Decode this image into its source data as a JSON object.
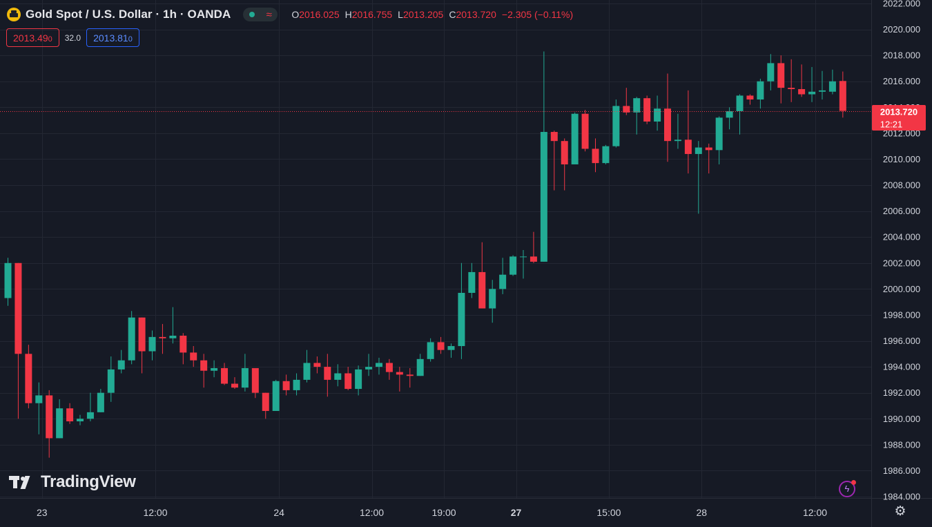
{
  "header": {
    "title": "Gold Spot / U.S. Dollar · 1h · OANDA",
    "status_icon": "wave-icon",
    "ohlc": {
      "o_label": "O",
      "o": "2016.025",
      "h_label": "H",
      "h": "2016.755",
      "l_label": "L",
      "l": "2013.205",
      "c_label": "C",
      "c": "2013.720",
      "change": "−2.305 (−0.11%)"
    },
    "sell_price": "2013.49",
    "sell_price_small": "0",
    "spread": "32.0",
    "buy_price": "2013.81",
    "buy_price_small": "0"
  },
  "branding": {
    "logo_text": "TradingView"
  },
  "colors": {
    "background": "#161a25",
    "up": "#22ab94",
    "down": "#f23645",
    "grid": "#232733",
    "axis_text": "#d1d4dc"
  },
  "chart_data": {
    "type": "candlestick",
    "title": "Gold Spot / U.S. Dollar · 1h · OANDA",
    "xlabel": "",
    "ylabel": "",
    "ylim": [
      1984,
      2022
    ],
    "y_ticks": [
      "2022.000",
      "2020.000",
      "2018.000",
      "2016.000",
      "2014.000",
      "2012.000",
      "2010.000",
      "2008.000",
      "2006.000",
      "2004.000",
      "2002.000",
      "2000.000",
      "1998.000",
      "1996.000",
      "1994.000",
      "1992.000",
      "1990.000",
      "1988.000",
      "1986.000",
      "1984.000"
    ],
    "x_ticks": [
      {
        "label": "23",
        "index": 3.3,
        "bold": false
      },
      {
        "label": "12:00",
        "index": 14.3,
        "bold": false
      },
      {
        "label": "24",
        "index": 26.3,
        "bold": false
      },
      {
        "label": "12:00",
        "index": 35.3,
        "bold": false
      },
      {
        "label": "19:00",
        "index": 42.3,
        "bold": false
      },
      {
        "label": "27",
        "index": 49.3,
        "bold": true
      },
      {
        "label": "15:00",
        "index": 58.3,
        "bold": false
      },
      {
        "label": "28",
        "index": 67.3,
        "bold": false
      },
      {
        "label": "12:00",
        "index": 78.3,
        "bold": false
      }
    ],
    "grid": true,
    "last_price": {
      "value": 2013.72,
      "label": "2013.720",
      "countdown": "12:21"
    },
    "candles": [
      {
        "o": 1999.3,
        "h": 2002.4,
        "l": 1998.7,
        "c": 2002.0
      },
      {
        "o": 2002.0,
        "h": 2002.0,
        "l": 1990.0,
        "c": 1995.0
      },
      {
        "o": 1995.0,
        "h": 1995.7,
        "l": 1990.8,
        "c": 1991.2
      },
      {
        "o": 1991.2,
        "h": 1992.8,
        "l": 1988.8,
        "c": 1991.8
      },
      {
        "o": 1991.8,
        "h": 1992.2,
        "l": 1987.0,
        "c": 1988.5
      },
      {
        "o": 1988.5,
        "h": 1991.5,
        "l": 1988.5,
        "c": 1990.8
      },
      {
        "o": 1990.8,
        "h": 1991.2,
        "l": 1989.6,
        "c": 1989.8
      },
      {
        "o": 1989.8,
        "h": 1990.3,
        "l": 1989.5,
        "c": 1990.0
      },
      {
        "o": 1990.0,
        "h": 1992.0,
        "l": 1989.8,
        "c": 1990.5
      },
      {
        "o": 1990.5,
        "h": 1992.3,
        "l": 1990.5,
        "c": 1992.0
      },
      {
        "o": 1992.0,
        "h": 1994.8,
        "l": 1991.3,
        "c": 1993.8
      },
      {
        "o": 1993.8,
        "h": 1995.3,
        "l": 1993.5,
        "c": 1994.5
      },
      {
        "o": 1994.5,
        "h": 1998.3,
        "l": 1994.2,
        "c": 1997.8
      },
      {
        "o": 1997.8,
        "h": 1997.8,
        "l": 1993.5,
        "c": 1995.2
      },
      {
        "o": 1995.2,
        "h": 1996.8,
        "l": 1994.5,
        "c": 1996.3
      },
      {
        "o": 1996.3,
        "h": 1997.3,
        "l": 1995.0,
        "c": 1996.2
      },
      {
        "o": 1996.2,
        "h": 1998.6,
        "l": 1995.8,
        "c": 1996.4
      },
      {
        "o": 1996.4,
        "h": 1996.6,
        "l": 1994.2,
        "c": 1995.1
      },
      {
        "o": 1995.1,
        "h": 1995.6,
        "l": 1994.0,
        "c": 1994.5
      },
      {
        "o": 1994.5,
        "h": 1995.0,
        "l": 1992.4,
        "c": 1993.7
      },
      {
        "o": 1993.7,
        "h": 1994.5,
        "l": 1993.2,
        "c": 1993.9
      },
      {
        "o": 1993.9,
        "h": 1994.3,
        "l": 1992.6,
        "c": 1992.7
      },
      {
        "o": 1992.7,
        "h": 1993.2,
        "l": 1992.3,
        "c": 1992.4
      },
      {
        "o": 1992.4,
        "h": 1995.0,
        "l": 1992.1,
        "c": 1993.9
      },
      {
        "o": 1993.9,
        "h": 1993.9,
        "l": 1991.6,
        "c": 1992.0
      },
      {
        "o": 1992.0,
        "h": 1992.0,
        "l": 1990.0,
        "c": 1990.6
      },
      {
        "o": 1990.6,
        "h": 1993.0,
        "l": 1990.6,
        "c": 1992.9
      },
      {
        "o": 1992.9,
        "h": 1993.4,
        "l": 1991.8,
        "c": 1992.2
      },
      {
        "o": 1992.2,
        "h": 1993.5,
        "l": 1991.8,
        "c": 1993.0
      },
      {
        "o": 1993.0,
        "h": 1995.3,
        "l": 1992.8,
        "c": 1994.3
      },
      {
        "o": 1994.3,
        "h": 1994.8,
        "l": 1993.5,
        "c": 1994.0
      },
      {
        "o": 1994.0,
        "h": 1995.0,
        "l": 1991.7,
        "c": 1993.0
      },
      {
        "o": 1993.0,
        "h": 1994.2,
        "l": 1992.5,
        "c": 1993.5
      },
      {
        "o": 1993.5,
        "h": 1994.0,
        "l": 1992.2,
        "c": 1992.3
      },
      {
        "o": 1992.3,
        "h": 1994.1,
        "l": 1991.8,
        "c": 1993.8
      },
      {
        "o": 1993.8,
        "h": 1995.0,
        "l": 1993.3,
        "c": 1994.0
      },
      {
        "o": 1994.0,
        "h": 1994.7,
        "l": 1993.4,
        "c": 1994.3
      },
      {
        "o": 1994.3,
        "h": 1994.6,
        "l": 1993.0,
        "c": 1993.6
      },
      {
        "o": 1993.6,
        "h": 1994.0,
        "l": 1992.1,
        "c": 1993.4
      },
      {
        "o": 1993.4,
        "h": 1993.9,
        "l": 1992.4,
        "c": 1993.3
      },
      {
        "o": 1993.3,
        "h": 1995.0,
        "l": 1993.3,
        "c": 1994.6
      },
      {
        "o": 1994.6,
        "h": 1996.2,
        "l": 1994.4,
        "c": 1995.9
      },
      {
        "o": 1995.9,
        "h": 1996.3,
        "l": 1995.0,
        "c": 1995.3
      },
      {
        "o": 1995.3,
        "h": 1995.8,
        "l": 1994.7,
        "c": 1995.6
      },
      {
        "o": 1995.6,
        "h": 2002.0,
        "l": 1994.6,
        "c": 1999.7
      },
      {
        "o": 1999.7,
        "h": 2002.0,
        "l": 1999.3,
        "c": 2001.3
      },
      {
        "o": 2001.3,
        "h": 2003.6,
        "l": 1998.5,
        "c": 1998.5
      },
      {
        "o": 1998.5,
        "h": 2000.7,
        "l": 1997.4,
        "c": 2000.0
      },
      {
        "o": 2000.0,
        "h": 2002.4,
        "l": 1999.6,
        "c": 2001.1
      },
      {
        "o": 2001.1,
        "h": 2002.6,
        "l": 2001.0,
        "c": 2002.5
      },
      {
        "o": 2002.5,
        "h": 2003.0,
        "l": 2000.8,
        "c": 2002.5
      },
      {
        "o": 2002.5,
        "h": 2004.4,
        "l": 2002.0,
        "c": 2002.1
      },
      {
        "o": 2002.1,
        "h": 2018.3,
        "l": 2002.1,
        "c": 2012.1
      },
      {
        "o": 2012.1,
        "h": 2012.2,
        "l": 2007.6,
        "c": 2011.4
      },
      {
        "o": 2011.4,
        "h": 2011.6,
        "l": 2007.6,
        "c": 2009.6
      },
      {
        "o": 2009.6,
        "h": 2013.6,
        "l": 2009.6,
        "c": 2013.5
      },
      {
        "o": 2013.5,
        "h": 2013.8,
        "l": 2010.6,
        "c": 2010.8
      },
      {
        "o": 2010.8,
        "h": 2011.6,
        "l": 2009.0,
        "c": 2009.7
      },
      {
        "o": 2009.7,
        "h": 2011.1,
        "l": 2009.6,
        "c": 2011.0
      },
      {
        "o": 2011.0,
        "h": 2014.6,
        "l": 2010.9,
        "c": 2014.1
      },
      {
        "o": 2014.1,
        "h": 2015.5,
        "l": 2013.4,
        "c": 2013.6
      },
      {
        "o": 2013.6,
        "h": 2014.8,
        "l": 2011.9,
        "c": 2014.7
      },
      {
        "o": 2014.7,
        "h": 2014.9,
        "l": 2012.7,
        "c": 2012.9
      },
      {
        "o": 2012.9,
        "h": 2014.9,
        "l": 2012.2,
        "c": 2013.9
      },
      {
        "o": 2013.9,
        "h": 2016.6,
        "l": 2009.8,
        "c": 2011.4
      },
      {
        "o": 2011.4,
        "h": 2013.5,
        "l": 2010.8,
        "c": 2011.5
      },
      {
        "o": 2011.5,
        "h": 2015.3,
        "l": 2008.9,
        "c": 2010.4
      },
      {
        "o": 2010.4,
        "h": 2011.4,
        "l": 2005.8,
        "c": 2010.9
      },
      {
        "o": 2010.9,
        "h": 2011.2,
        "l": 2008.9,
        "c": 2010.7
      },
      {
        "o": 2010.7,
        "h": 2013.3,
        "l": 2009.6,
        "c": 2013.2
      },
      {
        "o": 2013.2,
        "h": 2014.0,
        "l": 2012.3,
        "c": 2013.7
      },
      {
        "o": 2013.7,
        "h": 2015.0,
        "l": 2011.9,
        "c": 2014.9
      },
      {
        "o": 2014.9,
        "h": 2015.0,
        "l": 2014.2,
        "c": 2014.6
      },
      {
        "o": 2014.6,
        "h": 2016.2,
        "l": 2013.9,
        "c": 2016.0
      },
      {
        "o": 2016.0,
        "h": 2018.1,
        "l": 2015.3,
        "c": 2017.4
      },
      {
        "o": 2017.4,
        "h": 2018.0,
        "l": 2014.3,
        "c": 2015.5
      },
      {
        "o": 2015.5,
        "h": 2017.7,
        "l": 2014.4,
        "c": 2015.4
      },
      {
        "o": 2015.4,
        "h": 2017.3,
        "l": 2014.8,
        "c": 2015.0
      },
      {
        "o": 2015.0,
        "h": 2017.1,
        "l": 2014.4,
        "c": 2015.2
      },
      {
        "o": 2015.2,
        "h": 2016.8,
        "l": 2014.6,
        "c": 2015.3
      },
      {
        "o": 2015.2,
        "h": 2016.9,
        "l": 2015.0,
        "c": 2016.0
      },
      {
        "o": 2016.025,
        "h": 2016.755,
        "l": 2013.205,
        "c": 2013.72
      }
    ]
  }
}
